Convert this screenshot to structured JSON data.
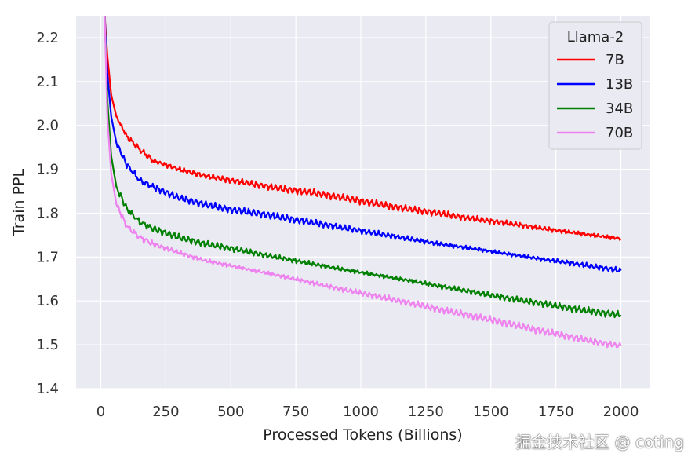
{
  "chart_data": {
    "type": "line",
    "xlabel": "Processed Tokens (Billions)",
    "ylabel": "Train PPL",
    "xlim": [
      -95,
      2110
    ],
    "ylim": [
      1.4,
      2.25
    ],
    "xticks": [
      0,
      250,
      500,
      750,
      1000,
      1250,
      1500,
      1750,
      2000
    ],
    "yticks": [
      1.4,
      1.5,
      1.6,
      1.7,
      1.8,
      1.9,
      2.0,
      2.1,
      2.2
    ],
    "grid": true,
    "legend": {
      "title": "Llama-2",
      "placement": "top-right"
    },
    "series": [
      {
        "name": "7B",
        "color": "#ff0000",
        "x": [
          15,
          25,
          40,
          60,
          100,
          150,
          200,
          300,
          400,
          500,
          600,
          700,
          800,
          900,
          1000,
          1100,
          1200,
          1300,
          1400,
          1500,
          1600,
          1700,
          1800,
          1900,
          2000
        ],
        "y": [
          2.25,
          2.16,
          2.07,
          2.02,
          1.975,
          1.945,
          1.92,
          1.9,
          1.885,
          1.875,
          1.865,
          1.855,
          1.848,
          1.838,
          1.828,
          1.817,
          1.808,
          1.8,
          1.79,
          1.782,
          1.774,
          1.765,
          1.757,
          1.749,
          1.742
        ]
      },
      {
        "name": "13B",
        "color": "#0000ff",
        "x": [
          15,
          25,
          40,
          60,
          100,
          150,
          200,
          300,
          400,
          500,
          600,
          700,
          800,
          900,
          1000,
          1100,
          1200,
          1300,
          1400,
          1500,
          1600,
          1700,
          1800,
          1900,
          2000
        ],
        "y": [
          2.25,
          2.12,
          2.02,
          1.96,
          1.91,
          1.875,
          1.86,
          1.835,
          1.82,
          1.808,
          1.8,
          1.79,
          1.78,
          1.77,
          1.76,
          1.75,
          1.74,
          1.73,
          1.722,
          1.713,
          1.704,
          1.695,
          1.687,
          1.678,
          1.669
        ]
      },
      {
        "name": "34B",
        "color": "#008000",
        "x": [
          15,
          25,
          40,
          60,
          100,
          150,
          200,
          300,
          400,
          500,
          600,
          700,
          800,
          900,
          1000,
          1100,
          1200,
          1300,
          1400,
          1500,
          1600,
          1700,
          1800,
          1900,
          2000
        ],
        "y": [
          2.25,
          2.06,
          1.93,
          1.86,
          1.81,
          1.78,
          1.765,
          1.745,
          1.73,
          1.72,
          1.708,
          1.697,
          1.686,
          1.675,
          1.665,
          1.655,
          1.645,
          1.634,
          1.624,
          1.613,
          1.603,
          1.594,
          1.584,
          1.575,
          1.568
        ]
      },
      {
        "name": "70B",
        "color": "#ee82ee",
        "x": [
          15,
          25,
          40,
          60,
          100,
          150,
          200,
          300,
          400,
          500,
          600,
          700,
          800,
          900,
          1000,
          1100,
          1200,
          1300,
          1400,
          1500,
          1600,
          1700,
          1800,
          1900,
          2000
        ],
        "y": [
          2.25,
          2.02,
          1.89,
          1.82,
          1.77,
          1.745,
          1.73,
          1.71,
          1.692,
          1.68,
          1.668,
          1.656,
          1.643,
          1.63,
          1.618,
          1.606,
          1.594,
          1.581,
          1.569,
          1.557,
          1.544,
          1.531,
          1.519,
          1.507,
          1.497
        ]
      }
    ]
  },
  "watermark": "掘金技术社区 @ coting"
}
